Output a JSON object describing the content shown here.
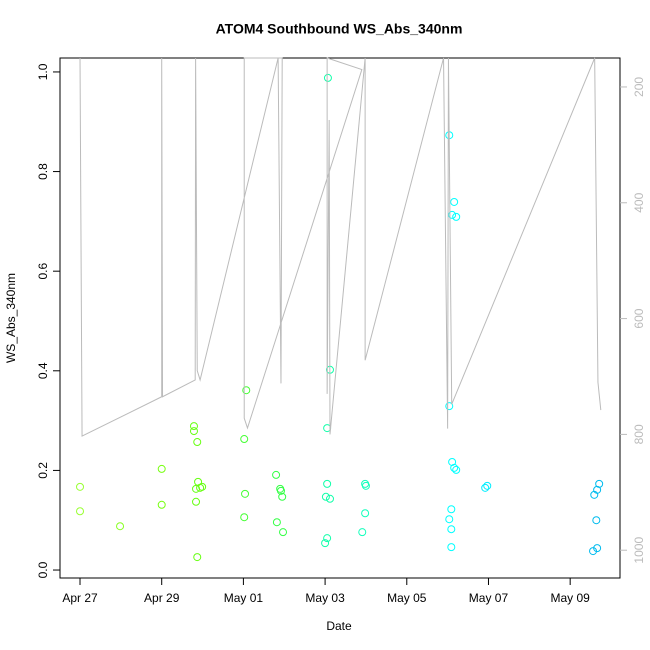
{
  "chart_data": {
    "type": "scatter",
    "title": "ATOM4 Southbound WS_Abs_340nm",
    "xlabel": "Date",
    "ylabel": "WS_Abs_340nm",
    "xlim": [
      -0.49,
      13.22
    ],
    "xticks": [
      {
        "value": 0,
        "label": "Apr 27"
      },
      {
        "value": 2,
        "label": "Apr 29"
      },
      {
        "value": 4,
        "label": "May 01"
      },
      {
        "value": 6,
        "label": "May 03"
      },
      {
        "value": 8,
        "label": "May 05"
      },
      {
        "value": 10,
        "label": "May 07"
      },
      {
        "value": 12,
        "label": "May 09"
      }
    ],
    "ylim": [
      -0.016,
      1.028
    ],
    "yticks": [
      {
        "value": 0,
        "label": "0.0"
      },
      {
        "value": 0.2,
        "label": "0.2"
      },
      {
        "value": 0.4,
        "label": "0.4"
      },
      {
        "value": 0.6,
        "label": "0.6"
      },
      {
        "value": 0.8,
        "label": "0.8"
      },
      {
        "value": 1,
        "label": "1.0"
      }
    ],
    "y2lim": [
      1048,
      150
    ],
    "y2ticks": [
      200,
      400,
      600,
      800,
      1000
    ],
    "y2color": "#bbbbbb",
    "series": [
      {
        "x": [
          0,
          0,
          0.98,
          2.0,
          2.0,
          2.79,
          2.79,
          2.87,
          2.89,
          2.84,
          2.94,
          2.99,
          2.84,
          2.87,
          4.07,
          4.02,
          4.04,
          4.02,
          4.8,
          4.9,
          4.92,
          4.95,
          4.82,
          4.97,
          6.07,
          6.12,
          6.05,
          6.05,
          6.02,
          6.12,
          6.05,
          6.0,
          6.98,
          7.0,
          6.98,
          6.91,
          9.04,
          9.16,
          9.11,
          9.21,
          9.04,
          9.11,
          9.16,
          9.21,
          9.09,
          9.04,
          9.09,
          9.09,
          9.97,
          9.92,
          12.71,
          12.66,
          12.59,
          12.64,
          12.66,
          12.56
        ],
        "values": [
          0.167,
          0.118,
          0.088,
          0.203,
          0.131,
          0.279,
          0.289,
          0.257,
          0.177,
          0.163,
          0.165,
          0.167,
          0.137,
          0.026,
          0.361,
          0.263,
          0.153,
          0.106,
          0.191,
          0.163,
          0.159,
          0.147,
          0.096,
          0.076,
          0.988,
          0.402,
          0.285,
          0.173,
          0.147,
          0.143,
          0.064,
          0.054,
          0.173,
          0.169,
          0.114,
          0.076,
          0.873,
          0.739,
          0.713,
          0.709,
          0.329,
          0.217,
          0.205,
          0.201,
          0.122,
          0.102,
          0.082,
          0.046,
          0.169,
          0.165,
          0.173,
          0.161,
          0.151,
          0.1,
          0.044,
          0.038
        ],
        "colors": [
          "#99ff33",
          "#99ff33",
          "#88ff22",
          "#77ff11",
          "#77ff11",
          "#66ff11",
          "#66ff11",
          "#66ff11",
          "#66ff11",
          "#66ff11",
          "#66ff11",
          "#66ff11",
          "#66ff11",
          "#66ff11",
          "#44ff33",
          "#44ff33",
          "#44ff33",
          "#44ff33",
          "#33ff44",
          "#33ff44",
          "#33ff44",
          "#33ff44",
          "#33ff44",
          "#33ff44",
          "#11ffaa",
          "#11ffaa",
          "#11ffaa",
          "#11ffaa",
          "#11ffaa",
          "#11ffaa",
          "#11ffaa",
          "#11ffaa",
          "#11ffbb",
          "#11ffbb",
          "#11ffbb",
          "#11ffbb",
          "#00ffff",
          "#00ffff",
          "#00ffff",
          "#00ffff",
          "#00ffff",
          "#00ffff",
          "#00ffff",
          "#00ffff",
          "#00ffff",
          "#00ffff",
          "#00ffff",
          "#00ffff",
          "#00eeff",
          "#00eeff",
          "#00bbee",
          "#00bbee",
          "#00bbee",
          "#00bbee",
          "#00bbee",
          "#00bbee"
        ]
      },
      {
        "type": "line",
        "axis": "y2",
        "color": "#bbbbbb",
        "x": [
          0,
          0.05,
          2.0,
          2.0,
          2.02,
          2.82,
          2.83,
          2.87,
          2.94,
          4.85,
          4.92,
          4.95,
          4.02,
          4.02,
          4.1,
          6.9,
          6.05,
          6.05,
          6.1,
          6.12,
          6.98,
          6.98,
          8.9,
          9.0,
          9.02,
          9.1,
          12.6,
          12.68,
          12.75
        ],
        "values": [
          150,
          803,
          735,
          150,
          735,
          706,
          150,
          690,
          706,
          150,
          712,
          150,
          150,
          772,
          789,
          170,
          150,
          730,
          257,
          800,
          150,
          672,
          150,
          790,
          150,
          748,
          150,
          710,
          758
        ]
      }
    ]
  }
}
